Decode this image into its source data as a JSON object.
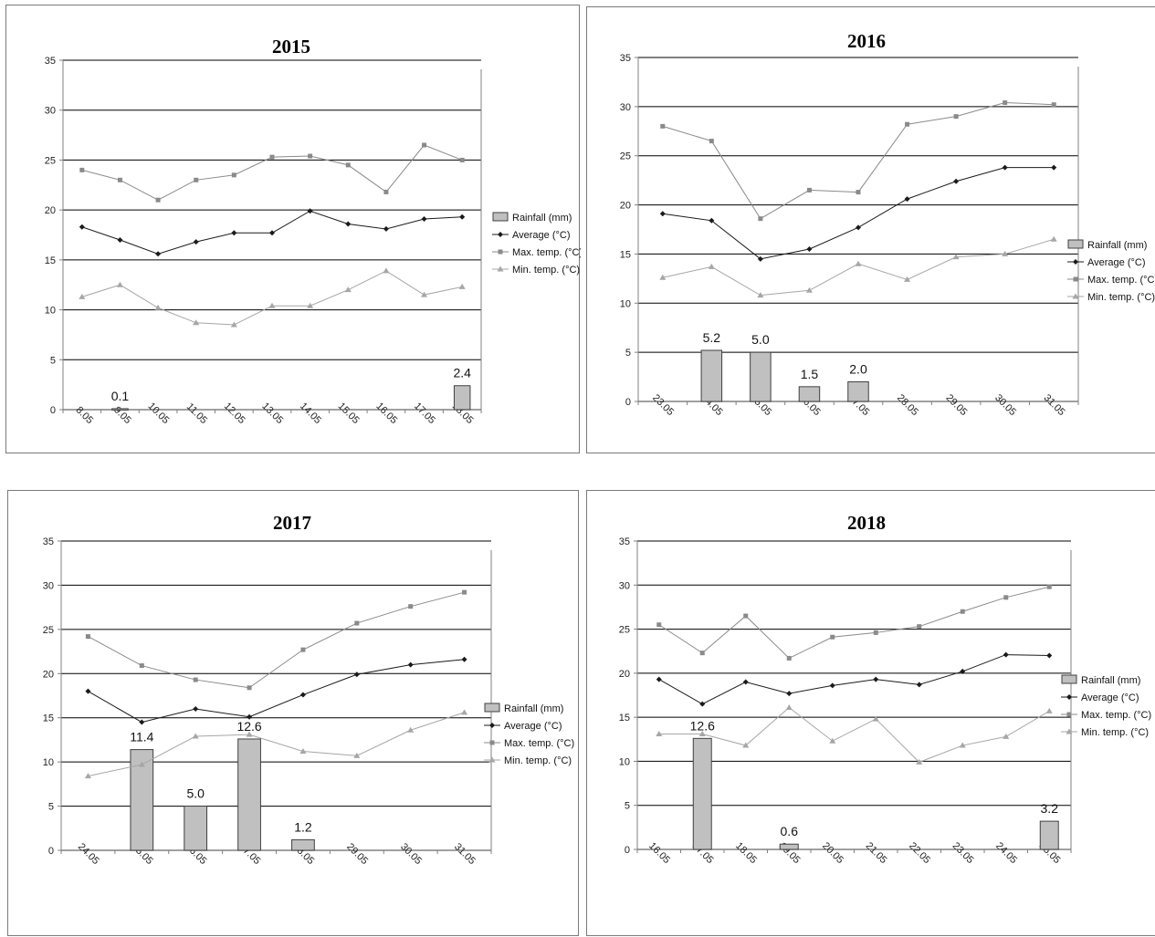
{
  "colors": {
    "grid": "#000000",
    "axis": "#808080",
    "bar_fill": "#c0c0c0",
    "bar_stroke": "#404040",
    "average": "#1a1a1a",
    "max_temp": "#8a8a8a",
    "min_temp": "#a6a6a6"
  },
  "chart_data": [
    {
      "type": "bar+line",
      "title": "2015",
      "ylim": [
        0,
        35
      ],
      "yticks": [
        "0",
        "5",
        "10",
        "15",
        "20",
        "25",
        "30",
        "35"
      ],
      "categories": [
        "8.05",
        "9.05",
        "10.05",
        "11.05",
        "12.05",
        "13.05",
        "14.05",
        "15.05",
        "16.05",
        "17.05",
        "18.05"
      ],
      "legend": [
        "Rainfall (mm)",
        "Average (°C)",
        "Max. temp. (°C)",
        "Min. temp. (°C)"
      ],
      "legend_position": "right",
      "series": [
        {
          "name": "Rainfall (mm)",
          "kind": "bar",
          "values": [
            0,
            0.1,
            0,
            0,
            0,
            0,
            0,
            0,
            0,
            0,
            2.4
          ]
        },
        {
          "name": "Average (°C)",
          "kind": "line",
          "marker": "diamond",
          "values": [
            18.3,
            17.0,
            15.6,
            16.8,
            17.7,
            17.7,
            19.9,
            18.6,
            18.1,
            19.1,
            19.3
          ]
        },
        {
          "name": "Max. temp. (°C)",
          "kind": "line",
          "marker": "square",
          "values": [
            24.0,
            23.0,
            21.0,
            23.0,
            23.5,
            25.3,
            25.4,
            24.5,
            21.8,
            26.5,
            25.0
          ]
        },
        {
          "name": "Min. temp. (°C)",
          "kind": "line",
          "marker": "triangle",
          "values": [
            11.3,
            12.5,
            10.2,
            8.7,
            8.5,
            10.4,
            10.4,
            12.0,
            13.9,
            11.5,
            12.3
          ]
        }
      ],
      "bar_labels": [
        {
          "index": 1,
          "text": "0.1"
        },
        {
          "index": 10,
          "text": "2.4"
        }
      ]
    },
    {
      "type": "bar+line",
      "title": "2016",
      "ylim": [
        0,
        35
      ],
      "yticks": [
        "0",
        "5",
        "10",
        "15",
        "20",
        "25",
        "30",
        "35"
      ],
      "categories": [
        "23.05",
        "24.05",
        "25.05",
        "26.05",
        "27.05",
        "28.05",
        "29.05",
        "30.05",
        "31.05"
      ],
      "legend": [
        "Rainfall (mm)",
        "Average (°C)",
        "Max. temp. (°C)",
        "Min. temp. (°C)"
      ],
      "legend_position": "right",
      "series": [
        {
          "name": "Rainfall (mm)",
          "kind": "bar",
          "values": [
            0,
            5.2,
            5.0,
            1.5,
            2.0,
            0,
            0,
            0,
            0
          ]
        },
        {
          "name": "Average (°C)",
          "kind": "line",
          "marker": "diamond",
          "values": [
            19.1,
            18.4,
            14.5,
            15.5,
            17.7,
            20.6,
            22.4,
            23.8,
            23.8
          ]
        },
        {
          "name": "Max. temp. (°C)",
          "kind": "line",
          "marker": "square",
          "values": [
            28.0,
            26.5,
            18.6,
            21.5,
            21.3,
            28.2,
            29.0,
            30.4,
            30.2
          ]
        },
        {
          "name": "Min. temp. (°C)",
          "kind": "line",
          "marker": "triangle",
          "values": [
            12.6,
            13.7,
            10.8,
            11.3,
            14.0,
            12.4,
            14.7,
            15.0,
            16.5
          ]
        }
      ],
      "bar_labels": [
        {
          "index": 1,
          "text": "5.2"
        },
        {
          "index": 2,
          "text": "5.0"
        },
        {
          "index": 3,
          "text": "1.5"
        },
        {
          "index": 4,
          "text": "2.0"
        }
      ]
    },
    {
      "type": "bar+line",
      "title": "2017",
      "ylim": [
        0,
        35
      ],
      "yticks": [
        "0",
        "5",
        "10",
        "15",
        "20",
        "25",
        "30",
        "35"
      ],
      "categories": [
        "24.05",
        "25.05",
        "26.05",
        "27.05",
        "28.05",
        "29.05",
        "30.05",
        "31.05"
      ],
      "legend": [
        "Rainfall (mm)",
        "Average (°C)",
        "Max. temp. (°C)",
        "Min. temp. (°C)"
      ],
      "legend_position": "right",
      "series": [
        {
          "name": "Rainfall (mm)",
          "kind": "bar",
          "values": [
            0,
            11.4,
            5.0,
            12.6,
            1.2,
            0,
            0,
            0
          ]
        },
        {
          "name": "Average (°C)",
          "kind": "line",
          "marker": "diamond",
          "values": [
            18.0,
            14.5,
            16.0,
            15.1,
            17.6,
            19.9,
            21.0,
            21.6
          ]
        },
        {
          "name": "Max. temp. (°C)",
          "kind": "line",
          "marker": "square",
          "values": [
            24.2,
            20.9,
            19.3,
            18.4,
            22.7,
            25.7,
            27.6,
            29.2
          ]
        },
        {
          "name": "Min. temp. (°C)",
          "kind": "line",
          "marker": "triangle",
          "values": [
            8.4,
            9.7,
            12.9,
            13.1,
            11.2,
            10.7,
            13.6,
            15.6
          ]
        }
      ],
      "bar_labels": [
        {
          "index": 1,
          "text": "11.4"
        },
        {
          "index": 2,
          "text": "5.0"
        },
        {
          "index": 3,
          "text": "12.6"
        },
        {
          "index": 4,
          "text": "1.2"
        }
      ]
    },
    {
      "type": "bar+line",
      "title": "2018",
      "ylim": [
        0,
        35
      ],
      "yticks": [
        "0",
        "5",
        "10",
        "15",
        "20",
        "25",
        "30",
        "35"
      ],
      "categories": [
        "16.05",
        "17.05",
        "18.05",
        "19.05",
        "20.05",
        "21.05",
        "22.05",
        "23.05",
        "24.05",
        "25.05"
      ],
      "legend": [
        "Rainfall (mm)",
        "Average (°C)",
        "Max. temp. (°C)",
        "Min. temp. (°C)"
      ],
      "legend_position": "right",
      "series": [
        {
          "name": "Rainfall (mm)",
          "kind": "bar",
          "values": [
            0,
            12.6,
            0,
            0.6,
            0,
            0,
            0,
            0,
            0,
            3.2
          ]
        },
        {
          "name": "Average (°C)",
          "kind": "line",
          "marker": "diamond",
          "values": [
            19.3,
            16.5,
            19.0,
            17.7,
            18.6,
            19.3,
            18.7,
            20.2,
            22.1,
            22.0
          ]
        },
        {
          "name": "Max. temp. (°C)",
          "kind": "line",
          "marker": "square",
          "values": [
            25.5,
            22.3,
            26.5,
            21.7,
            24.1,
            24.6,
            25.3,
            27.0,
            28.6,
            29.8
          ]
        },
        {
          "name": "Min. temp. (°C)",
          "kind": "line",
          "marker": "triangle",
          "values": [
            13.1,
            13.1,
            11.8,
            16.1,
            12.3,
            14.8,
            9.9,
            11.8,
            12.8,
            15.7
          ]
        }
      ],
      "bar_labels": [
        {
          "index": 1,
          "text": "12.6"
        },
        {
          "index": 3,
          "text": "0.6"
        },
        {
          "index": 9,
          "text": "3.2"
        }
      ]
    }
  ]
}
